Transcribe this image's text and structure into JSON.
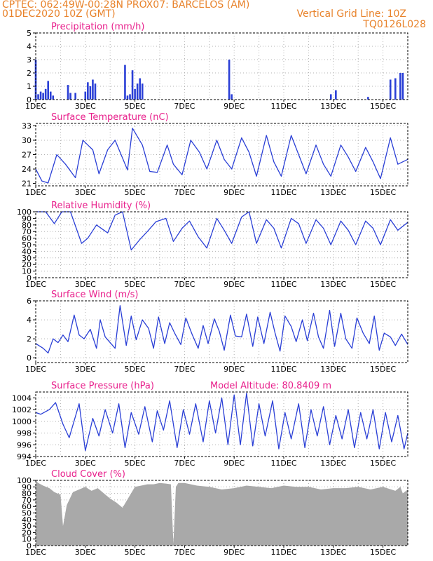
{
  "header": {
    "line1_left": "CPTEC:   062:49W-00:28N   PROX07: BARCELOS (AM)",
    "line2_left": "01DEC2020 10Z (GMT)",
    "line2_right": "Vertical Grid Line: 10Z",
    "line3_right": "TQ0126L028"
  },
  "colors": {
    "header": "#e8822a",
    "title": "#e8208c",
    "series": "#2a3fd6",
    "cloud": "#a9a9a9",
    "grid": "#b0b0b0"
  },
  "x_ticks": [
    "1DEC",
    "3DEC",
    "5DEC",
    "7DEC",
    "9DEC",
    "11DEC",
    "13DEC",
    "15DEC"
  ],
  "chart_data": [
    {
      "type": "bar",
      "title": "Precipitation (mm/h)",
      "ylim": [
        0,
        5
      ],
      "yticks": [
        "0",
        "1",
        "2",
        "3",
        "4",
        "5"
      ],
      "x_unit": "day",
      "x": [
        1.0,
        1.1,
        1.2,
        1.3,
        1.4,
        1.5,
        1.6,
        1.7,
        2.3,
        2.4,
        2.6,
        3.0,
        3.1,
        3.2,
        3.3,
        3.4,
        4.6,
        4.7,
        4.8,
        4.9,
        5.0,
        5.1,
        5.2,
        5.3,
        8.8,
        8.9,
        12.9,
        13.1,
        14.4,
        15.3,
        15.5,
        15.7,
        15.8
      ],
      "values": [
        3.0,
        0.4,
        0.6,
        0.5,
        0.8,
        1.4,
        0.6,
        0.3,
        1.1,
        0.5,
        0.5,
        0.6,
        1.3,
        1.0,
        1.5,
        1.2,
        2.6,
        0.3,
        0.4,
        2.2,
        0.8,
        1.2,
        1.6,
        1.2,
        3.0,
        0.4,
        0.4,
        0.7,
        0.2,
        1.5,
        1.6,
        2.0,
        2.0
      ]
    },
    {
      "type": "line",
      "title": "Surface Temperature (nC)",
      "ylim": [
        20.5,
        33.5
      ],
      "yticks": [
        "21",
        "24",
        "27",
        "30",
        "33"
      ],
      "x": [
        1.0,
        1.25,
        1.5,
        1.85,
        2.2,
        2.6,
        2.9,
        3.3,
        3.55,
        3.9,
        4.2,
        4.7,
        4.9,
        5.3,
        5.6,
        5.9,
        6.3,
        6.55,
        6.9,
        7.25,
        7.6,
        7.9,
        8.3,
        8.6,
        8.9,
        9.3,
        9.6,
        9.9,
        10.3,
        10.6,
        10.9,
        11.3,
        11.6,
        11.9,
        12.3,
        12.6,
        12.9,
        13.3,
        13.6,
        13.9,
        14.3,
        14.6,
        14.9,
        15.3,
        15.6,
        16.0
      ],
      "values": [
        24.0,
        21.5,
        21.1,
        27.0,
        25.0,
        22.2,
        30.0,
        28.0,
        23.0,
        28.0,
        30.0,
        23.8,
        32.5,
        29.0,
        23.5,
        23.3,
        29.0,
        25.0,
        22.8,
        30.0,
        27.5,
        24.0,
        30.0,
        26.0,
        24.0,
        30.5,
        27.5,
        22.5,
        31.0,
        25.5,
        22.5,
        31.0,
        27.0,
        23.0,
        29.0,
        25.0,
        22.5,
        29.0,
        26.5,
        23.5,
        28.5,
        25.5,
        22.0,
        30.5,
        25.0,
        26.0
      ]
    },
    {
      "type": "line",
      "title": "Relative Humidity (%)",
      "ylim": [
        0,
        100
      ],
      "yticks": [
        "0",
        "10",
        "20",
        "30",
        "40",
        "50",
        "60",
        "70",
        "80",
        "90",
        "100"
      ],
      "x": [
        1.0,
        1.4,
        1.75,
        2.05,
        2.4,
        2.85,
        3.1,
        3.45,
        3.9,
        4.2,
        4.5,
        4.85,
        5.2,
        5.5,
        5.85,
        6.25,
        6.55,
        6.9,
        7.2,
        7.55,
        7.9,
        8.3,
        8.6,
        8.9,
        9.3,
        9.6,
        9.9,
        10.3,
        10.6,
        10.9,
        11.3,
        11.6,
        11.9,
        12.3,
        12.6,
        12.9,
        13.3,
        13.6,
        13.9,
        14.3,
        14.6,
        14.9,
        15.3,
        15.6,
        16.0
      ],
      "values": [
        100,
        100,
        82,
        100,
        100,
        52,
        60,
        80,
        68,
        95,
        100,
        42,
        58,
        70,
        85,
        90,
        55,
        75,
        86,
        62,
        45,
        90,
        72,
        52,
        92,
        100,
        52,
        88,
        75,
        45,
        90,
        82,
        52,
        88,
        75,
        50,
        86,
        72,
        50,
        86,
        75,
        50,
        88,
        72,
        84
      ]
    },
    {
      "type": "line",
      "title": "Surface Wind (m/s)",
      "ylim": [
        -0.5,
        6
      ],
      "yticks": [
        "0",
        "2",
        "4",
        "6"
      ],
      "x": [
        1.0,
        1.3,
        1.5,
        1.7,
        1.9,
        2.1,
        2.3,
        2.55,
        2.75,
        2.95,
        3.2,
        3.45,
        3.6,
        3.8,
        4.0,
        4.2,
        4.4,
        4.65,
        4.85,
        5.05,
        5.3,
        5.55,
        5.75,
        5.95,
        6.2,
        6.4,
        6.6,
        6.85,
        7.05,
        7.3,
        7.55,
        7.75,
        7.95,
        8.2,
        8.4,
        8.6,
        8.85,
        9.05,
        9.3,
        9.5,
        9.75,
        9.95,
        10.2,
        10.45,
        10.65,
        10.85,
        11.05,
        11.3,
        11.5,
        11.75,
        11.95,
        12.2,
        12.4,
        12.6,
        12.85,
        13.05,
        13.3,
        13.5,
        13.75,
        13.95,
        14.2,
        14.45,
        14.65,
        14.85,
        15.05,
        15.3,
        15.5,
        15.75,
        16.0
      ],
      "values": [
        1.5,
        1.0,
        0.5,
        2.0,
        1.6,
        2.4,
        1.7,
        4.5,
        2.4,
        2.0,
        3.0,
        1.0,
        4.0,
        2.2,
        1.6,
        1.0,
        5.5,
        1.3,
        4.4,
        1.9,
        4.0,
        3.1,
        1.0,
        4.3,
        1.5,
        3.7,
        2.6,
        1.4,
        4.2,
        2.5,
        1.0,
        3.4,
        1.5,
        4.1,
        2.8,
        0.8,
        4.5,
        2.3,
        2.2,
        4.6,
        1.2,
        4.3,
        1.5,
        4.8,
        2.6,
        0.7,
        4.4,
        3.3,
        1.7,
        4.0,
        1.8,
        4.7,
        2.2,
        1.0,
        5.0,
        1.2,
        4.7,
        2.0,
        1.0,
        4.2,
        2.6,
        1.5,
        4.4,
        0.8,
        2.6,
        2.2,
        1.3,
        2.5,
        1.4
      ]
    },
    {
      "type": "line",
      "title": "Surface Pressure (hPa)",
      "annotation": "Model Altitude: 80.8409 m",
      "ylim": [
        994,
        1005
      ],
      "yticks": [
        "994",
        "996",
        "998",
        "1000",
        "1002",
        "1004"
      ],
      "x": [
        1.0,
        1.2,
        1.55,
        1.8,
        2.1,
        2.35,
        2.75,
        3.0,
        3.3,
        3.55,
        3.8,
        4.1,
        4.35,
        4.6,
        4.85,
        5.15,
        5.4,
        5.7,
        5.9,
        6.15,
        6.4,
        6.7,
        6.95,
        7.2,
        7.45,
        7.75,
        8.0,
        8.25,
        8.5,
        8.75,
        9.0,
        9.25,
        9.5,
        9.75,
        10.0,
        10.25,
        10.55,
        10.8,
        11.05,
        11.3,
        11.6,
        11.85,
        12.1,
        12.35,
        12.6,
        12.85,
        13.1,
        13.35,
        13.6,
        13.85,
        14.1,
        14.35,
        14.6,
        14.85,
        15.1,
        15.35,
        15.6,
        15.85,
        16.0
      ],
      "values": [
        1001.5,
        1001.2,
        1002.0,
        1003.2,
        999.5,
        997.2,
        1003.0,
        995.0,
        1000.5,
        997.5,
        1002.0,
        998.0,
        1003.0,
        995.5,
        1001.5,
        997.8,
        1002.5,
        996.5,
        1001.8,
        998.5,
        1003.5,
        995.5,
        1002.0,
        997.8,
        1003.0,
        996.5,
        1003.5,
        998.0,
        1004.0,
        996.0,
        1004.5,
        996.0,
        1004.8,
        995.8,
        1003.0,
        997.5,
        1003.5,
        995.3,
        1001.5,
        997.0,
        1003.0,
        995.5,
        1002.0,
        997.5,
        1002.5,
        996.0,
        1001.0,
        997.0,
        1002.0,
        995.5,
        1001.5,
        997.0,
        1002.0,
        995.3,
        1001.5,
        996.5,
        1001.0,
        995.3,
        998.0
      ]
    },
    {
      "type": "area",
      "title": "Cloud Cover (%)",
      "ylim": [
        0,
        100
      ],
      "yticks": [
        "0",
        "10",
        "20",
        "30",
        "40",
        "50",
        "60",
        "70",
        "80",
        "90",
        "100"
      ],
      "x": [
        1.0,
        1.1,
        1.3,
        1.55,
        1.75,
        2.0,
        2.1,
        2.25,
        2.5,
        2.75,
        3.0,
        3.25,
        3.5,
        3.75,
        4.0,
        4.25,
        4.5,
        4.75,
        5.0,
        5.25,
        5.5,
        5.75,
        6.0,
        6.25,
        6.45,
        6.55,
        6.65,
        6.75,
        7.0,
        7.5,
        8.0,
        8.5,
        9.0,
        9.5,
        10.0,
        10.5,
        11.0,
        11.5,
        12.0,
        12.5,
        13.0,
        13.5,
        14.0,
        14.5,
        15.0,
        15.5,
        15.7,
        15.8,
        16.0
      ],
      "values": [
        100,
        96,
        92,
        88,
        82,
        78,
        30,
        62,
        82,
        86,
        90,
        84,
        88,
        80,
        72,
        66,
        58,
        74,
        90,
        92,
        94,
        94,
        96,
        95,
        94,
        3,
        90,
        96,
        96,
        92,
        90,
        86,
        88,
        92,
        90,
        88,
        92,
        90,
        90,
        86,
        88,
        88,
        90,
        86,
        90,
        84,
        90,
        80,
        86
      ]
    }
  ]
}
